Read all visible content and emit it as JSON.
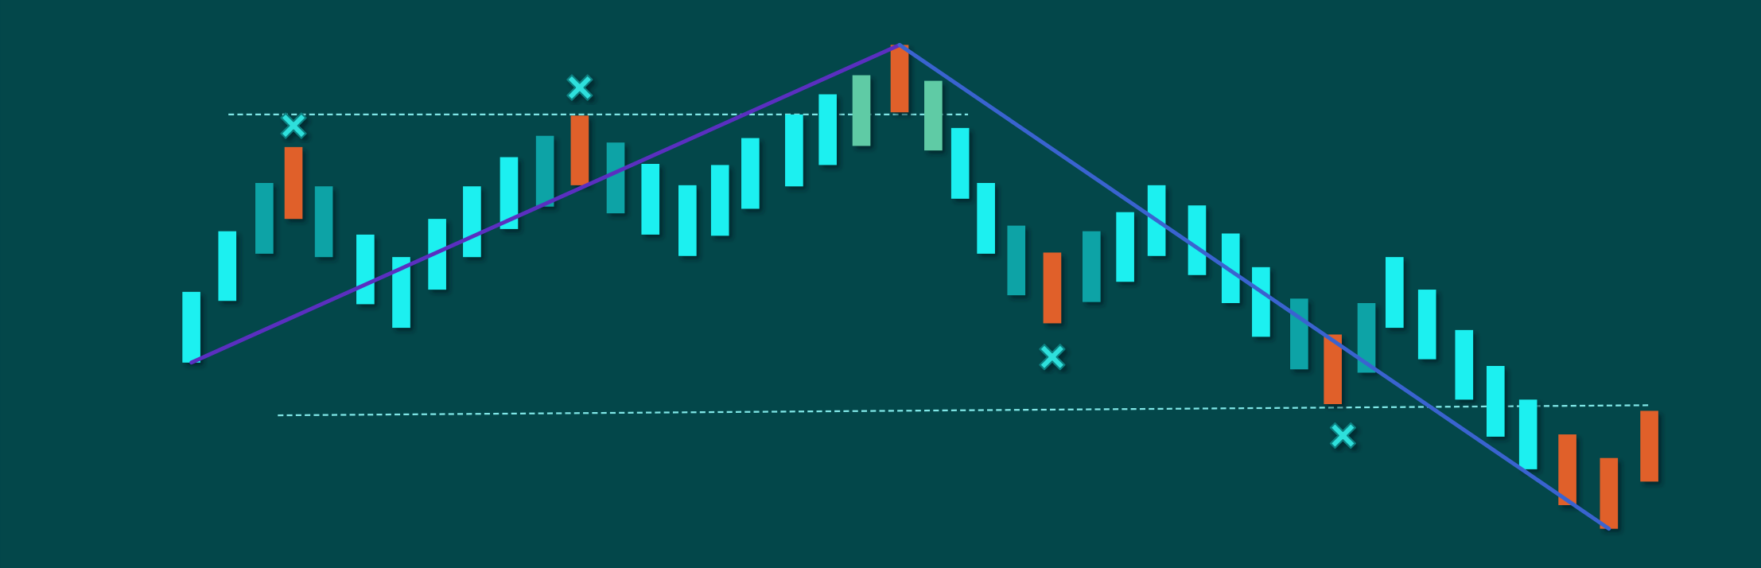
{
  "chart_data": {
    "type": "candlestick",
    "xlim": [
      0,
      1568
    ],
    "ylim": [
      0,
      506
    ],
    "x": [
      170,
      202,
      235,
      261,
      288,
      325,
      357,
      389,
      420,
      453,
      485,
      516,
      548,
      579,
      612,
      641,
      668,
      707,
      737,
      767,
      801,
      831,
      855,
      878,
      905,
      937,
      972,
      1002,
      1030,
      1066,
      1096,
      1123,
      1157,
      1187,
      1217,
      1242,
      1271,
      1304,
      1332,
      1361,
      1396,
      1433,
      1469
    ],
    "high": [
      246,
      300,
      343,
      375,
      340,
      297,
      277,
      311,
      340,
      366,
      385,
      403,
      379,
      360,
      341,
      359,
      383,
      404,
      422,
      439,
      466,
      434,
      392,
      343,
      305,
      281,
      300,
      317,
      341,
      323,
      298,
      268,
      240,
      208,
      236,
      277,
      248,
      212,
      180,
      150,
      119,
      98,
      140
    ],
    "low": [
      183,
      238,
      280,
      311,
      277,
      235,
      214,
      248,
      277,
      302,
      322,
      341,
      316,
      297,
      278,
      296,
      320,
      340,
      359,
      376,
      406,
      372,
      329,
      280,
      243,
      218,
      237,
      255,
      278,
      261,
      236,
      206,
      177,
      146,
      174,
      214,
      186,
      150,
      117,
      88,
      56,
      35,
      77
    ],
    "colors": [
      "#1ef0f0",
      "#1ef0f0",
      "#0fa3a6",
      "#e0612b",
      "#0fa3a6",
      "#1ef0f0",
      "#1ef0f0",
      "#1ef0f0",
      "#1ef0f0",
      "#1ef0f0",
      "#0fa3a6",
      "#e0612b",
      "#0fa3a6",
      "#1ef0f0",
      "#1ef0f0",
      "#1ef0f0",
      "#1ef0f0",
      "#1ef0f0",
      "#1ef0f0",
      "#5fcba5",
      "#e0612b",
      "#5fcba5",
      "#1ef0f0",
      "#1ef0f0",
      "#0fa3a6",
      "#e0612b",
      "#0fa3a6",
      "#1ef0f0",
      "#1ef0f0",
      "#1ef0f0",
      "#1ef0f0",
      "#1ef0f0",
      "#0fa3a6",
      "#e0612b",
      "#0fa3a6",
      "#1ef0f0",
      "#1ef0f0",
      "#1ef0f0",
      "#1ef0f0",
      "#1ef0f0",
      "#e0612b",
      "#e0612b",
      "#e0612b"
    ],
    "levels": [
      {
        "x": [
          203,
          862
        ],
        "values": [
          404,
          404
        ],
        "color": "#7fe6e6"
      },
      {
        "x": [
          247,
          1468
        ],
        "values": [
          136,
          145
        ],
        "color": "#7fe6e6"
      }
    ],
    "trendlines": [
      {
        "x": [
          170,
          801
        ],
        "values": [
          183,
          466
        ],
        "color": "#5a2fc0"
      },
      {
        "x": [
          801,
          1433
        ],
        "values": [
          466,
          35
        ],
        "color": "#3a63d0"
      }
    ],
    "markers": {
      "x": [
        261,
        516,
        937,
        1196
      ],
      "values": [
        394,
        428,
        188,
        118
      ],
      "color": "#2fe0dc"
    }
  }
}
